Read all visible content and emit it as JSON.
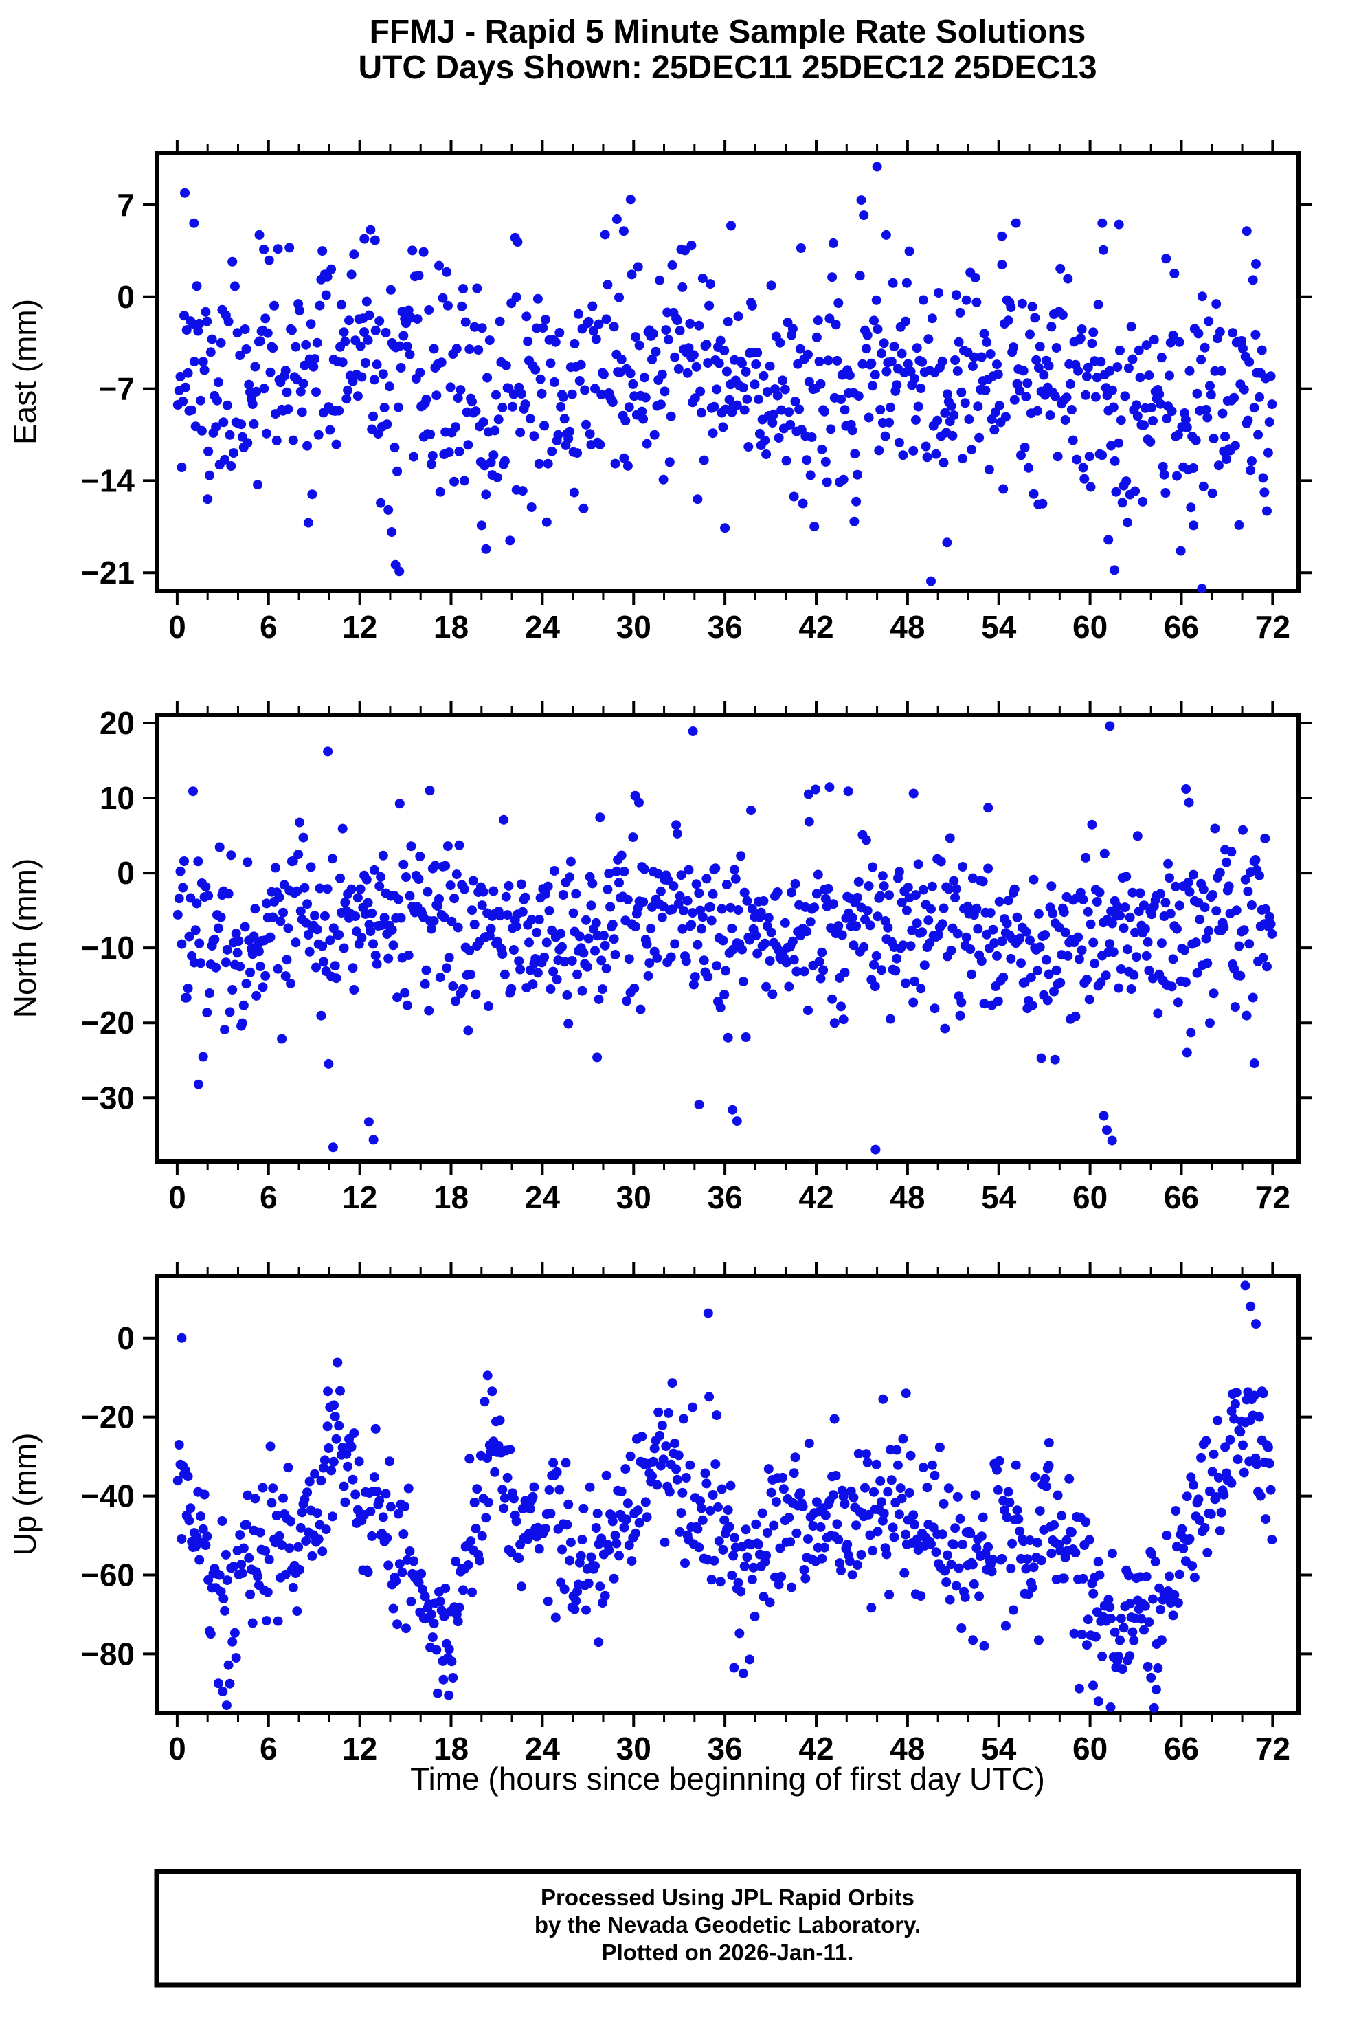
{
  "title": {
    "line1": "FFMJ - Rapid 5 Minute Sample Rate Solutions",
    "line2": "UTC Days Shown:  25DEC11 25DEC12 25DEC13"
  },
  "footer": {
    "lines": [
      "Processed Using JPL Rapid Orbits",
      "by the Nevada Geodetic Laboratory.",
      "Plotted on 2026-Jan-11."
    ]
  },
  "colors": {
    "accent": "#0e0ee8",
    "frame": "#000000",
    "background": "#ffffff"
  },
  "xaxis": {
    "label": "Time (hours since beginning of first day UTC)",
    "lim": [
      -1.35,
      73.7
    ],
    "major_ticks": [
      0,
      6,
      12,
      18,
      24,
      30,
      36,
      42,
      48,
      54,
      60,
      66,
      72
    ],
    "minor_step": 2
  },
  "chart_data": [
    {
      "type": "scatter",
      "name": "East",
      "ylabel": "East (mm)",
      "yticks": [
        7,
        0,
        -7,
        -14,
        -21
      ],
      "ylim": [
        -22.4,
        10.92
      ],
      "marker_radius": 7,
      "cloud": {
        "n": 864,
        "seed": 11,
        "std": 4.1,
        "mean_keypoints": [
          [
            0,
            -3.5
          ],
          [
            1,
            -5
          ],
          [
            2,
            -7
          ],
          [
            4,
            -6.5
          ],
          [
            6,
            -5.5
          ],
          [
            8,
            -6
          ],
          [
            10,
            -4.5
          ],
          [
            12,
            -4.5
          ],
          [
            14,
            -8.5
          ],
          [
            15,
            -7
          ],
          [
            16,
            -6
          ],
          [
            18,
            -7
          ],
          [
            20,
            -9
          ],
          [
            22,
            -7.5
          ],
          [
            24,
            -6.5
          ],
          [
            26,
            -8
          ],
          [
            28,
            -4.5
          ],
          [
            30,
            -6.5
          ],
          [
            32,
            -5.5
          ],
          [
            34,
            -5
          ],
          [
            36,
            -7
          ],
          [
            38,
            -7.5
          ],
          [
            40,
            -6
          ],
          [
            42,
            -8.5
          ],
          [
            44,
            -8
          ],
          [
            46,
            -5.5
          ],
          [
            48,
            -5.5
          ],
          [
            50,
            -8
          ],
          [
            52,
            -6.5
          ],
          [
            54,
            -5.5
          ],
          [
            56,
            -7.5
          ],
          [
            58,
            -7.5
          ],
          [
            60,
            -6
          ],
          [
            62,
            -8
          ],
          [
            64,
            -7.5
          ],
          [
            66,
            -9
          ],
          [
            68,
            -8
          ],
          [
            70,
            -6.5
          ],
          [
            72,
            -7.5
          ]
        ]
      },
      "outliers": [
        [
          0.5,
          7.9
        ],
        [
          1.1,
          5.6
        ],
        [
          2.0,
          -15.4
        ],
        [
          5.4,
          4.7
        ],
        [
          5.7,
          3.6
        ],
        [
          12.3,
          4.4
        ],
        [
          13.0,
          4.3
        ],
        [
          14.1,
          -17.9
        ],
        [
          14.35,
          -20.4
        ],
        [
          14.6,
          -20.9
        ],
        [
          16.2,
          3.4
        ],
        [
          20.0,
          -17.4
        ],
        [
          20.3,
          -19.2
        ],
        [
          22.3,
          -14.7
        ],
        [
          26.1,
          -14.9
        ],
        [
          28.9,
          5.9
        ],
        [
          29.35,
          5.0
        ],
        [
          29.8,
          7.4
        ],
        [
          33.8,
          3.9
        ],
        [
          36.0,
          -17.6
        ],
        [
          36.4,
          5.4
        ],
        [
          41.0,
          3.7
        ],
        [
          44.5,
          -17.1
        ],
        [
          46.0,
          9.9
        ],
        [
          46.6,
          4.7
        ],
        [
          50.6,
          -18.7
        ],
        [
          54.2,
          4.6
        ],
        [
          56.6,
          -15.8
        ],
        [
          60.8,
          5.6
        ],
        [
          61.2,
          -18.5
        ],
        [
          61.6,
          -20.8
        ],
        [
          61.9,
          5.5
        ],
        [
          65.0,
          2.9
        ],
        [
          66.8,
          -17.4
        ],
        [
          67.35,
          -22.2
        ],
        [
          70.3,
          5.0
        ],
        [
          70.9,
          2.5
        ]
      ]
    },
    {
      "type": "scatter",
      "name": "North",
      "ylabel": "North (mm)",
      "yticks": [
        20,
        10,
        0,
        -10,
        -20,
        -30
      ],
      "ylim": [
        -38.5,
        21.1
      ],
      "marker_radius": 7,
      "cloud": {
        "n": 864,
        "seed": 22,
        "std": 5.6,
        "mean_keypoints": [
          [
            0,
            -6
          ],
          [
            4,
            -8.5
          ],
          [
            8,
            -7
          ],
          [
            12,
            -6.5
          ],
          [
            16,
            -6.5
          ],
          [
            20,
            -8
          ],
          [
            24,
            -7.5
          ],
          [
            28,
            -7
          ],
          [
            32,
            -6.5
          ],
          [
            36,
            -8
          ],
          [
            40,
            -7.5
          ],
          [
            44,
            -7
          ],
          [
            48,
            -6.5
          ],
          [
            52,
            -8
          ],
          [
            56,
            -8.5
          ],
          [
            60,
            -9
          ],
          [
            64,
            -9
          ],
          [
            68,
            -7.5
          ],
          [
            72,
            -6.5
          ]
        ]
      },
      "outliers": [
        [
          1.4,
          -28.2
        ],
        [
          9.9,
          16.2
        ],
        [
          10.25,
          -36.6
        ],
        [
          12.6,
          -33.2
        ],
        [
          12.9,
          -35.6
        ],
        [
          16.6,
          11.0
        ],
        [
          27.6,
          -24.6
        ],
        [
          30.1,
          10.3
        ],
        [
          30.35,
          9.4
        ],
        [
          33.9,
          18.9
        ],
        [
          34.3,
          -30.9
        ],
        [
          36.5,
          -31.6
        ],
        [
          36.8,
          -33.1
        ],
        [
          41.5,
          10.5
        ],
        [
          44.1,
          10.9
        ],
        [
          45.9,
          -36.9
        ],
        [
          48.4,
          10.6
        ],
        [
          53.3,
          8.7
        ],
        [
          57.7,
          -24.9
        ],
        [
          60.9,
          -32.4
        ],
        [
          61.1,
          -34.3
        ],
        [
          61.3,
          19.6
        ],
        [
          61.45,
          -35.7
        ],
        [
          66.3,
          11.2
        ],
        [
          66.5,
          9.4
        ],
        [
          70.8,
          -25.4
        ],
        [
          71.5,
          4.6
        ]
      ]
    },
    {
      "type": "scatter",
      "name": "Up",
      "ylabel": "Up (mm)",
      "yticks": [
        0,
        -20,
        -40,
        -60,
        -80
      ],
      "ylim": [
        -94.9,
        15.8
      ],
      "marker_radius": 7,
      "cloud": {
        "n": 864,
        "seed": 33,
        "std": 9.5,
        "mean_keypoints": [
          [
            0,
            -35
          ],
          [
            1,
            -45
          ],
          [
            2,
            -58
          ],
          [
            3,
            -70
          ],
          [
            4,
            -60
          ],
          [
            5,
            -54
          ],
          [
            6,
            -52
          ],
          [
            7,
            -55
          ],
          [
            8,
            -50
          ],
          [
            9,
            -42
          ],
          [
            10,
            -28
          ],
          [
            10.7,
            -24
          ],
          [
            11.5,
            -38
          ],
          [
            12.5,
            -48
          ],
          [
            14,
            -52
          ],
          [
            15,
            -56
          ],
          [
            16,
            -62
          ],
          [
            17,
            -72
          ],
          [
            17.8,
            -80
          ],
          [
            18.5,
            -62
          ],
          [
            19.5,
            -48
          ],
          [
            20.3,
            -32
          ],
          [
            20.8,
            -26
          ],
          [
            21.5,
            -35
          ],
          [
            22.5,
            -46
          ],
          [
            24,
            -50
          ],
          [
            25,
            -46
          ],
          [
            26,
            -52
          ],
          [
            27,
            -60
          ],
          [
            28,
            -56
          ],
          [
            29,
            -50
          ],
          [
            30,
            -42
          ],
          [
            31,
            -33
          ],
          [
            31.8,
            -28
          ],
          [
            32.5,
            -34
          ],
          [
            33.5,
            -44
          ],
          [
            34.5,
            -46
          ],
          [
            35.5,
            -44
          ],
          [
            36.5,
            -56
          ],
          [
            37.2,
            -62
          ],
          [
            38,
            -54
          ],
          [
            39,
            -49
          ],
          [
            40,
            -46
          ],
          [
            41,
            -49
          ],
          [
            42,
            -52
          ],
          [
            43,
            -46
          ],
          [
            44,
            -49
          ],
          [
            45,
            -44
          ],
          [
            46,
            -46
          ],
          [
            47,
            -41
          ],
          [
            48,
            -46
          ],
          [
            49,
            -51
          ],
          [
            50,
            -49
          ],
          [
            51,
            -53
          ],
          [
            52,
            -51
          ],
          [
            53,
            -49
          ],
          [
            54,
            -46
          ],
          [
            55,
            -51
          ],
          [
            56,
            -53
          ],
          [
            57,
            -49
          ],
          [
            58,
            -51
          ],
          [
            59,
            -56
          ],
          [
            60,
            -65
          ],
          [
            61,
            -74
          ],
          [
            61.6,
            -77
          ],
          [
            62.5,
            -68
          ],
          [
            63.5,
            -67
          ],
          [
            64.2,
            -72
          ],
          [
            65,
            -66
          ],
          [
            66,
            -56
          ],
          [
            67,
            -46
          ],
          [
            68,
            -38
          ],
          [
            69,
            -32
          ],
          [
            70,
            -27
          ],
          [
            70.6,
            -24
          ],
          [
            71.2,
            -34
          ],
          [
            72,
            -44
          ]
        ]
      },
      "outliers": [
        [
          0.3,
          0.0
        ],
        [
          3.0,
          -89.5
        ],
        [
          3.25,
          -93.0
        ],
        [
          9.9,
          -13.5
        ],
        [
          10.3,
          -17.0
        ],
        [
          17.5,
          -86.5
        ],
        [
          17.85,
          -90.5
        ],
        [
          20.4,
          -9.5
        ],
        [
          20.7,
          -13.5
        ],
        [
          27.7,
          -77.0
        ],
        [
          34.9,
          6.3
        ],
        [
          36.6,
          -83.5
        ],
        [
          43.2,
          -20.5
        ],
        [
          46.4,
          -15.5
        ],
        [
          47.9,
          -14.0
        ],
        [
          52.3,
          -76.5
        ],
        [
          57.3,
          -26.5
        ],
        [
          60.2,
          -88.0
        ],
        [
          60.55,
          -92.0
        ],
        [
          61.35,
          -93.5
        ],
        [
          62.6,
          -80.5
        ],
        [
          64.0,
          -86.0
        ],
        [
          64.35,
          -89.0
        ],
        [
          69.3,
          -18.5
        ],
        [
          70.2,
          13.3
        ],
        [
          70.55,
          8.0
        ],
        [
          70.9,
          3.6
        ],
        [
          71.3,
          -13.5
        ]
      ]
    }
  ]
}
